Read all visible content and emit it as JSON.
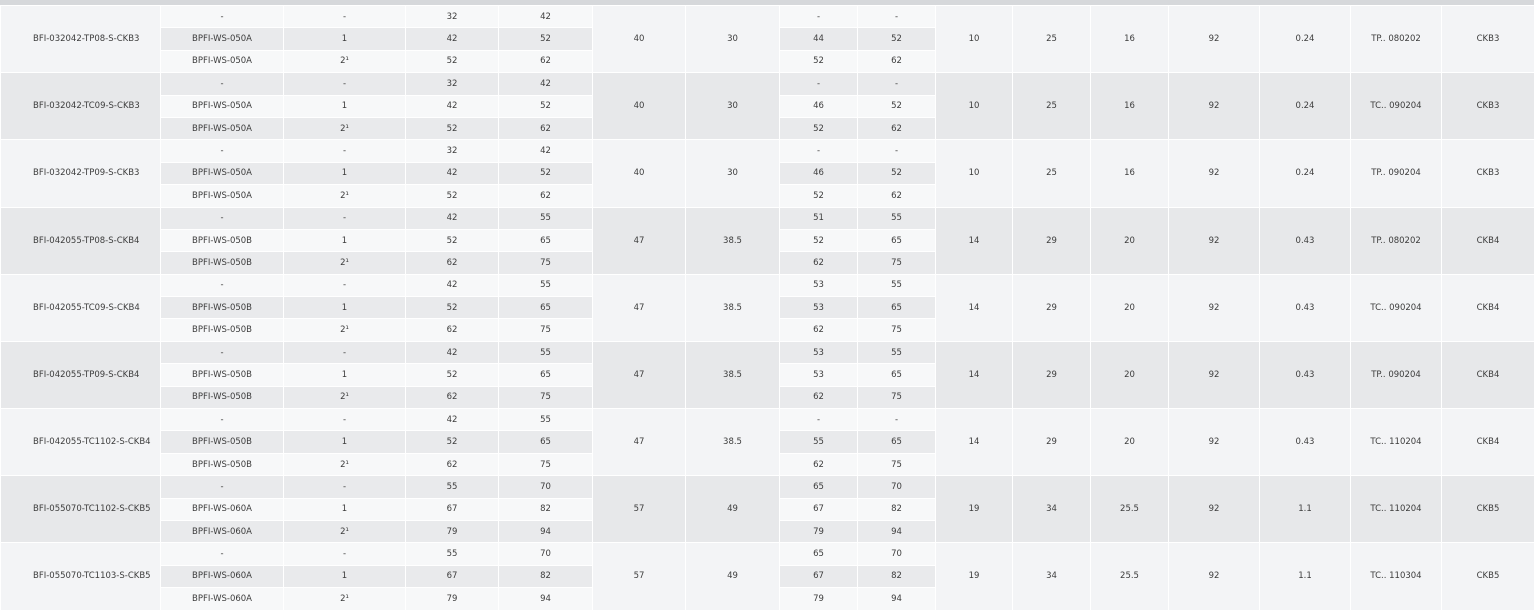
{
  "table": {
    "groups": [
      {
        "part": "BFI-032042-TP08-S-CKB3",
        "rows": [
          [
            "-",
            "-",
            "32",
            "42",
            "-",
            "-"
          ],
          [
            "BPFI-WS-050A",
            "1",
            "42",
            "52",
            "44",
            "52"
          ],
          [
            "BPFI-WS-050A",
            "2¹",
            "52",
            "62",
            "52",
            "62"
          ]
        ],
        "mid": [
          "40",
          "30"
        ],
        "tail": [
          "10",
          "25",
          "16",
          "92",
          "0.24",
          "TP.. 080202",
          "CKB3"
        ]
      },
      {
        "part": "BFI-032042-TC09-S-CKB3",
        "rows": [
          [
            "-",
            "-",
            "32",
            "42",
            "-",
            "-"
          ],
          [
            "BPFI-WS-050A",
            "1",
            "42",
            "52",
            "46",
            "52"
          ],
          [
            "BPFI-WS-050A",
            "2¹",
            "52",
            "62",
            "52",
            "62"
          ]
        ],
        "mid": [
          "40",
          "30"
        ],
        "tail": [
          "10",
          "25",
          "16",
          "92",
          "0.24",
          "TC.. 090204",
          "CKB3"
        ]
      },
      {
        "part": "BFI-032042-TP09-S-CKB3",
        "rows": [
          [
            "-",
            "-",
            "32",
            "42",
            "-",
            "-"
          ],
          [
            "BPFI-WS-050A",
            "1",
            "42",
            "52",
            "46",
            "52"
          ],
          [
            "BPFI-WS-050A",
            "2¹",
            "52",
            "62",
            "52",
            "62"
          ]
        ],
        "mid": [
          "40",
          "30"
        ],
        "tail": [
          "10",
          "25",
          "16",
          "92",
          "0.24",
          "TP.. 090204",
          "CKB3"
        ]
      },
      {
        "part": "BFI-042055-TP08-S-CKB4",
        "rows": [
          [
            "-",
            "-",
            "42",
            "55",
            "51",
            "55"
          ],
          [
            "BPFI-WS-050B",
            "1",
            "52",
            "65",
            "52",
            "65"
          ],
          [
            "BPFI-WS-050B",
            "2¹",
            "62",
            "75",
            "62",
            "75"
          ]
        ],
        "mid": [
          "47",
          "38.5"
        ],
        "tail": [
          "14",
          "29",
          "20",
          "92",
          "0.43",
          "TP.. 080202",
          "CKB4"
        ]
      },
      {
        "part": "BFI-042055-TC09-S-CKB4",
        "rows": [
          [
            "-",
            "-",
            "42",
            "55",
            "53",
            "55"
          ],
          [
            "BPFI-WS-050B",
            "1",
            "52",
            "65",
            "53",
            "65"
          ],
          [
            "BPFI-WS-050B",
            "2¹",
            "62",
            "75",
            "62",
            "75"
          ]
        ],
        "mid": [
          "47",
          "38.5"
        ],
        "tail": [
          "14",
          "29",
          "20",
          "92",
          "0.43",
          "TC.. 090204",
          "CKB4"
        ]
      },
      {
        "part": "BFI-042055-TP09-S-CKB4",
        "rows": [
          [
            "-",
            "-",
            "42",
            "55",
            "53",
            "55"
          ],
          [
            "BPFI-WS-050B",
            "1",
            "52",
            "65",
            "53",
            "65"
          ],
          [
            "BPFI-WS-050B",
            "2¹",
            "62",
            "75",
            "62",
            "75"
          ]
        ],
        "mid": [
          "47",
          "38.5"
        ],
        "tail": [
          "14",
          "29",
          "20",
          "92",
          "0.43",
          "TP.. 090204",
          "CKB4"
        ]
      },
      {
        "part": "BFI-042055-TC1102-S-CKB4",
        "rows": [
          [
            "-",
            "-",
            "42",
            "55",
            "-",
            "-"
          ],
          [
            "BPFI-WS-050B",
            "1",
            "52",
            "65",
            "55",
            "65"
          ],
          [
            "BPFI-WS-050B",
            "2¹",
            "62",
            "75",
            "62",
            "75"
          ]
        ],
        "mid": [
          "47",
          "38.5"
        ],
        "tail": [
          "14",
          "29",
          "20",
          "92",
          "0.43",
          "TC.. 110204",
          "CKB4"
        ]
      },
      {
        "part": "BFI-055070-TC1102-S-CKB5",
        "rows": [
          [
            "-",
            "-",
            "55",
            "70",
            "65",
            "70"
          ],
          [
            "BPFI-WS-060A",
            "1",
            "67",
            "82",
            "67",
            "82"
          ],
          [
            "BPFI-WS-060A",
            "2¹",
            "79",
            "94",
            "79",
            "94"
          ]
        ],
        "mid": [
          "57",
          "49"
        ],
        "tail": [
          "19",
          "34",
          "25.5",
          "92",
          "1.1",
          "TC.. 110204",
          "CKB5"
        ]
      },
      {
        "part": "BFI-055070-TC1103-S-CKB5",
        "rows": [
          [
            "-",
            "-",
            "55",
            "70",
            "65",
            "70"
          ],
          [
            "BPFI-WS-060A",
            "1",
            "67",
            "82",
            "67",
            "82"
          ],
          [
            "BPFI-WS-060A",
            "2¹",
            "79",
            "94",
            "79",
            "94"
          ]
        ],
        "mid": [
          "57",
          "49"
        ],
        "tail": [
          "19",
          "34",
          "25.5",
          "92",
          "1.1",
          "TC.. 110304",
          "CKB5"
        ]
      }
    ]
  }
}
